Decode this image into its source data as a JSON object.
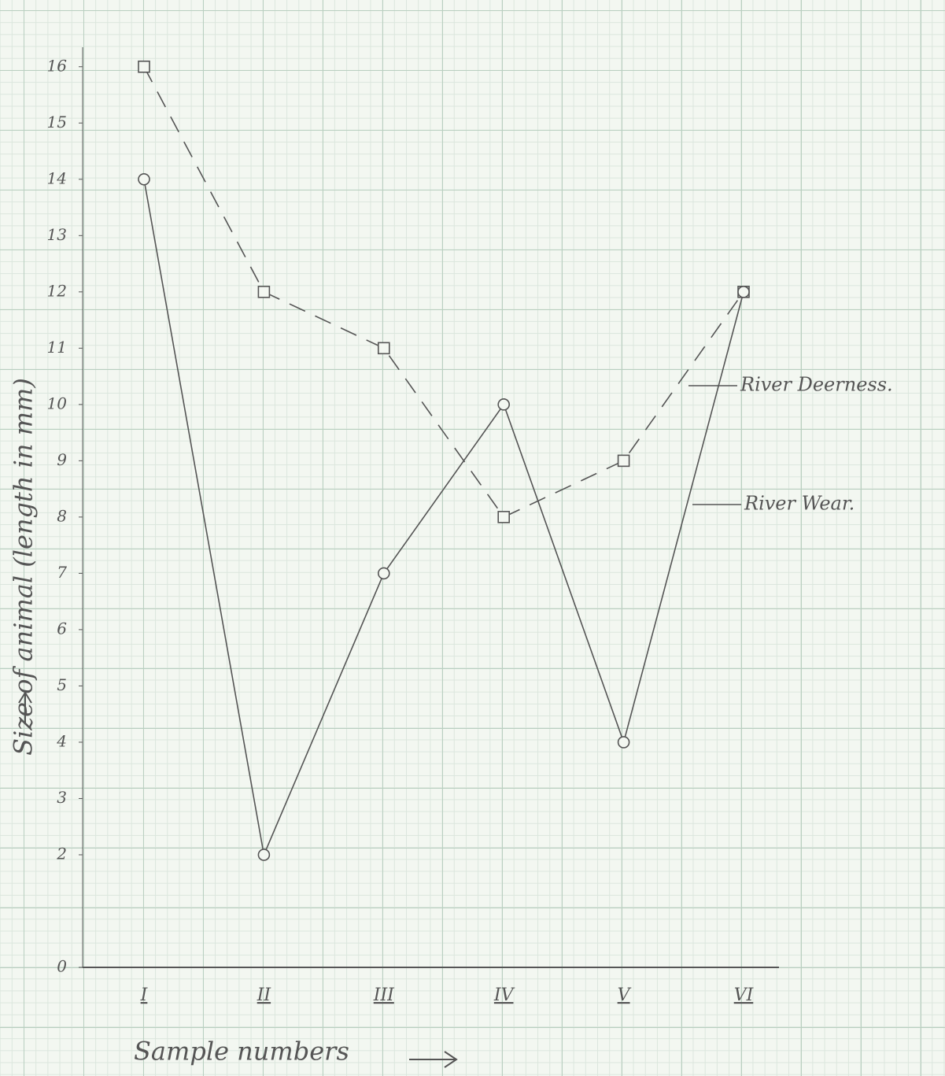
{
  "chart_data": {
    "type": "line",
    "x_label": "Sample numbers",
    "y_label": "Size of animal (length in mm)",
    "categories": [
      "I",
      "II",
      "III",
      "IV",
      "V",
      "VI"
    ],
    "series": [
      {
        "name": "River Deerness.",
        "color": "#555555",
        "dash": true,
        "marker": "square",
        "values": [
          16,
          12,
          11,
          8,
          9,
          12
        ]
      },
      {
        "name": "River Wear.",
        "color": "#555555",
        "dash": false,
        "marker": "circle",
        "values": [
          14,
          2,
          7,
          10,
          4,
          12
        ]
      }
    ],
    "ylim": [
      0,
      16.5
    ],
    "yticks": [
      0,
      2,
      3,
      4,
      5,
      6,
      7,
      8,
      9,
      10,
      11,
      12,
      13,
      14,
      15,
      16
    ],
    "grid": false
  }
}
